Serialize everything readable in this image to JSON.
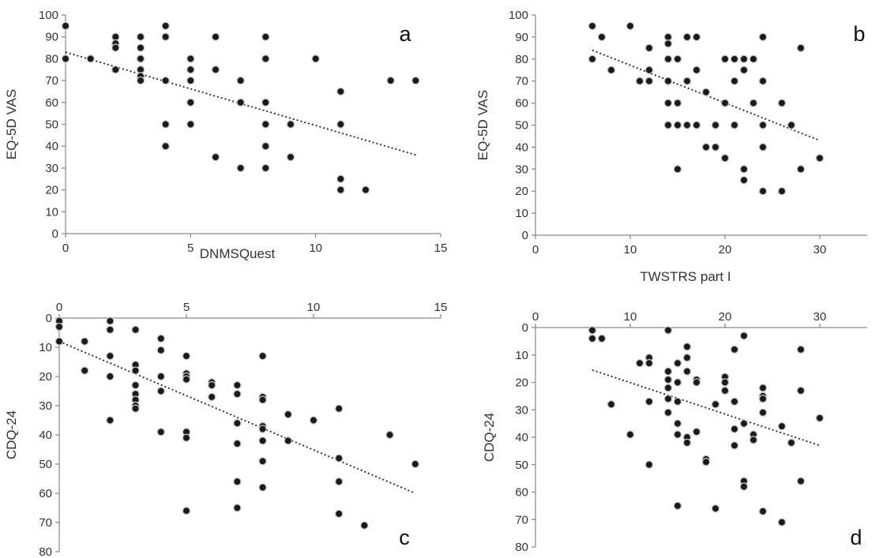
{
  "chart_data": [
    {
      "id": "a",
      "type": "scatter",
      "panel_label": "a",
      "xlabel": "DNMSQuest",
      "ylabel": "EQ-5D VAS",
      "xlim": [
        0,
        15
      ],
      "ylim": [
        0,
        100
      ],
      "xticks": [
        0,
        5,
        10,
        15
      ],
      "yticks": [
        0,
        10,
        20,
        30,
        40,
        50,
        60,
        70,
        80,
        90,
        100
      ],
      "x_axis_position": "bottom",
      "y_inverted": false,
      "grid": false,
      "trendline": {
        "style": "dotted",
        "x": [
          0,
          14
        ],
        "y": [
          83,
          36
        ]
      },
      "points": [
        [
          0,
          95
        ],
        [
          0,
          80
        ],
        [
          1,
          80
        ],
        [
          2,
          90
        ],
        [
          2,
          87
        ],
        [
          2,
          85
        ],
        [
          2,
          75
        ],
        [
          3,
          90
        ],
        [
          3,
          85
        ],
        [
          3,
          80
        ],
        [
          3,
          75
        ],
        [
          3,
          72
        ],
        [
          3,
          70
        ],
        [
          4,
          95
        ],
        [
          4,
          90
        ],
        [
          4,
          70
        ],
        [
          4,
          50
        ],
        [
          4,
          40
        ],
        [
          5,
          80
        ],
        [
          5,
          75
        ],
        [
          5,
          70
        ],
        [
          5,
          60
        ],
        [
          5,
          50
        ],
        [
          6,
          90
        ],
        [
          6,
          75
        ],
        [
          6,
          35
        ],
        [
          7,
          70
        ],
        [
          7,
          60
        ],
        [
          7,
          30
        ],
        [
          8,
          90
        ],
        [
          8,
          80
        ],
        [
          8,
          60
        ],
        [
          8,
          50
        ],
        [
          8,
          40
        ],
        [
          8,
          30
        ],
        [
          9,
          50
        ],
        [
          9,
          35
        ],
        [
          10,
          80
        ],
        [
          11,
          65
        ],
        [
          11,
          50
        ],
        [
          11,
          25
        ],
        [
          11,
          20
        ],
        [
          12,
          20
        ],
        [
          13,
          70
        ],
        [
          14,
          70
        ]
      ]
    },
    {
      "id": "b",
      "type": "scatter",
      "panel_label": "b",
      "xlabel": "TWSTRS part I",
      "ylabel": "EQ-5D VAS",
      "xlim": [
        0,
        35
      ],
      "ylim": [
        0,
        100
      ],
      "xticks": [
        0,
        10,
        20,
        30
      ],
      "yticks": [
        0,
        10,
        20,
        30,
        40,
        50,
        60,
        70,
        80,
        90,
        100
      ],
      "x_axis_position": "bottom",
      "y_inverted": false,
      "grid": false,
      "trendline": {
        "style": "dotted",
        "x": [
          6,
          30
        ],
        "y": [
          84,
          43
        ]
      },
      "points": [
        [
          6,
          95
        ],
        [
          6,
          80
        ],
        [
          7,
          90
        ],
        [
          8,
          75
        ],
        [
          10,
          95
        ],
        [
          11,
          70
        ],
        [
          12,
          85
        ],
        [
          12,
          75
        ],
        [
          12,
          70
        ],
        [
          14,
          90
        ],
        [
          14,
          87
        ],
        [
          14,
          80
        ],
        [
          14,
          70
        ],
        [
          14,
          60
        ],
        [
          14,
          50
        ],
        [
          15,
          80
        ],
        [
          15,
          60
        ],
        [
          15,
          50
        ],
        [
          15,
          30
        ],
        [
          16,
          90
        ],
        [
          16,
          70
        ],
        [
          16,
          50
        ],
        [
          17,
          90
        ],
        [
          17,
          75
        ],
        [
          17,
          50
        ],
        [
          18,
          65
        ],
        [
          18,
          40
        ],
        [
          19,
          50
        ],
        [
          19,
          40
        ],
        [
          20,
          80
        ],
        [
          20,
          60
        ],
        [
          20,
          35
        ],
        [
          21,
          80
        ],
        [
          21,
          70
        ],
        [
          21,
          50
        ],
        [
          22,
          80
        ],
        [
          22,
          75
        ],
        [
          22,
          30
        ],
        [
          22,
          25
        ],
        [
          23,
          80
        ],
        [
          23,
          60
        ],
        [
          24,
          90
        ],
        [
          24,
          70
        ],
        [
          24,
          50
        ],
        [
          24,
          40
        ],
        [
          24,
          20
        ],
        [
          26,
          60
        ],
        [
          26,
          20
        ],
        [
          27,
          50
        ],
        [
          28,
          85
        ],
        [
          28,
          30
        ],
        [
          30,
          35
        ]
      ]
    },
    {
      "id": "c",
      "type": "scatter",
      "panel_label": "c",
      "xlabel": "",
      "ylabel": "CDQ-24",
      "xlim": [
        0,
        15
      ],
      "ylim": [
        0,
        80
      ],
      "xticks": [
        0,
        5,
        10,
        15
      ],
      "yticks": [
        0,
        10,
        20,
        30,
        40,
        50,
        60,
        70,
        80
      ],
      "x_axis_position": "top",
      "y_inverted": true,
      "grid": false,
      "trendline": {
        "style": "dotted",
        "x": [
          0,
          14
        ],
        "y": [
          8,
          60
        ]
      },
      "points": [
        [
          0,
          1
        ],
        [
          0,
          3
        ],
        [
          0,
          8
        ],
        [
          1,
          8
        ],
        [
          1,
          18
        ],
        [
          2,
          1
        ],
        [
          2,
          4
        ],
        [
          2,
          13
        ],
        [
          2,
          20
        ],
        [
          2,
          35
        ],
        [
          3,
          4
        ],
        [
          3,
          16
        ],
        [
          3,
          18
        ],
        [
          3,
          23
        ],
        [
          3,
          26
        ],
        [
          3,
          28
        ],
        [
          3,
          30
        ],
        [
          3,
          31
        ],
        [
          4,
          7
        ],
        [
          4,
          11
        ],
        [
          4,
          20
        ],
        [
          4,
          25
        ],
        [
          4,
          39
        ],
        [
          5,
          13
        ],
        [
          5,
          19
        ],
        [
          5,
          20
        ],
        [
          5,
          21
        ],
        [
          5,
          39
        ],
        [
          5,
          41
        ],
        [
          5,
          66
        ],
        [
          6,
          22
        ],
        [
          6,
          23
        ],
        [
          6,
          27
        ],
        [
          7,
          23
        ],
        [
          7,
          26
        ],
        [
          7,
          36
        ],
        [
          7,
          43
        ],
        [
          7,
          56
        ],
        [
          7,
          65
        ],
        [
          8,
          13
        ],
        [
          8,
          27
        ],
        [
          8,
          28
        ],
        [
          8,
          37
        ],
        [
          8,
          38
        ],
        [
          8,
          42
        ],
        [
          8,
          49
        ],
        [
          8,
          58
        ],
        [
          9,
          33
        ],
        [
          9,
          42
        ],
        [
          10,
          35
        ],
        [
          11,
          31
        ],
        [
          11,
          48
        ],
        [
          11,
          56
        ],
        [
          11,
          67
        ],
        [
          12,
          71
        ],
        [
          13,
          40
        ],
        [
          14,
          50
        ]
      ]
    },
    {
      "id": "d",
      "type": "scatter",
      "panel_label": "d",
      "xlabel": "",
      "ylabel": "CDQ-24",
      "xlim": [
        0,
        35
      ],
      "ylim": [
        0,
        80
      ],
      "xticks": [
        0,
        10,
        20,
        30
      ],
      "yticks": [
        0,
        10,
        20,
        30,
        40,
        50,
        60,
        70,
        80
      ],
      "x_axis_position": "top",
      "y_inverted": true,
      "grid": false,
      "trendline": {
        "style": "dotted",
        "x": [
          6,
          30
        ],
        "y": [
          15.5,
          43
        ]
      },
      "points": [
        [
          6,
          1
        ],
        [
          6,
          4
        ],
        [
          7,
          4
        ],
        [
          8,
          28
        ],
        [
          10,
          39
        ],
        [
          11,
          13
        ],
        [
          12,
          11
        ],
        [
          12,
          13
        ],
        [
          12,
          27
        ],
        [
          12,
          50
        ],
        [
          14,
          1
        ],
        [
          14,
          16
        ],
        [
          14,
          19
        ],
        [
          14,
          22
        ],
        [
          14,
          26
        ],
        [
          14,
          31
        ],
        [
          15,
          13
        ],
        [
          15,
          20
        ],
        [
          15,
          27
        ],
        [
          15,
          35
        ],
        [
          15,
          39
        ],
        [
          15,
          65
        ],
        [
          16,
          7
        ],
        [
          16,
          11
        ],
        [
          16,
          16
        ],
        [
          16,
          40
        ],
        [
          16,
          42
        ],
        [
          17,
          19
        ],
        [
          17,
          20
        ],
        [
          17,
          38
        ],
        [
          18,
          48
        ],
        [
          18,
          49
        ],
        [
          19,
          28
        ],
        [
          19,
          66
        ],
        [
          20,
          18
        ],
        [
          20,
          20
        ],
        [
          20,
          23
        ],
        [
          21,
          8
        ],
        [
          21,
          27
        ],
        [
          21,
          37
        ],
        [
          21,
          43
        ],
        [
          22,
          3
        ],
        [
          22,
          35
        ],
        [
          22,
          56
        ],
        [
          22,
          58
        ],
        [
          23,
          39
        ],
        [
          23,
          41
        ],
        [
          24,
          22
        ],
        [
          24,
          25
        ],
        [
          24,
          26
        ],
        [
          24,
          31
        ],
        [
          24,
          67
        ],
        [
          26,
          36
        ],
        [
          26,
          71
        ],
        [
          27,
          42
        ],
        [
          28,
          8
        ],
        [
          28,
          23
        ],
        [
          28,
          56
        ],
        [
          30,
          33
        ]
      ]
    }
  ]
}
